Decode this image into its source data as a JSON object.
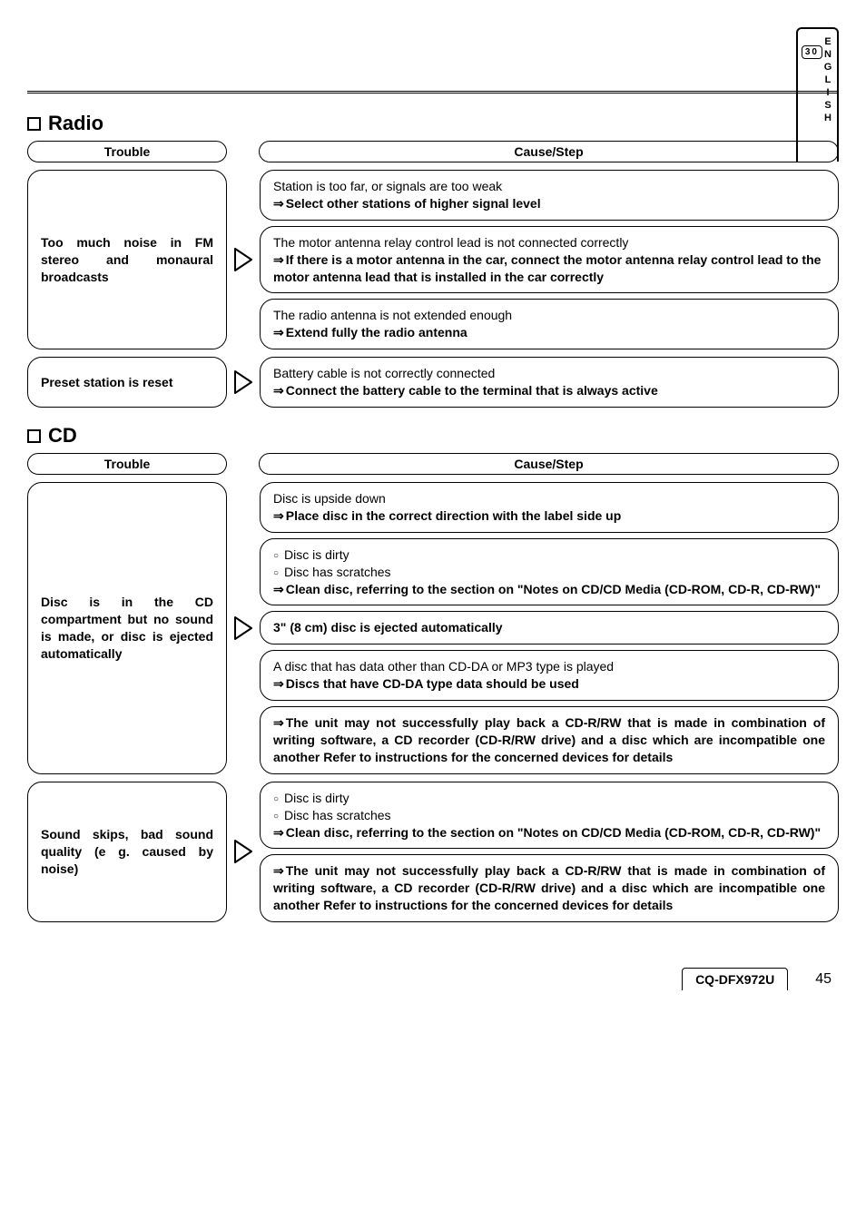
{
  "sideTab": {
    "lang": "ENGLISH",
    "page": "30"
  },
  "sections": [
    {
      "title": "Radio",
      "headers": {
        "trouble": "Trouble",
        "cause": "Cause/Step"
      },
      "rows": [
        {
          "trouble": "Too much noise in FM stereo and monaural broadcasts",
          "causes": [
            {
              "lines": [
                {
                  "type": "plain",
                  "text": "Station is too far, or signals are too weak"
                },
                {
                  "type": "step",
                  "text": "Select other stations of higher signal level"
                }
              ]
            },
            {
              "lines": [
                {
                  "type": "plain",
                  "text": "The motor antenna relay control lead is not connected correctly"
                },
                {
                  "type": "step",
                  "text": "If there is a motor antenna in the car, connect the motor antenna relay control lead to the motor antenna lead that is installed in the car correctly"
                }
              ]
            },
            {
              "lines": [
                {
                  "type": "plain",
                  "text": "The radio antenna is not extended enough"
                },
                {
                  "type": "step",
                  "text": "Extend fully the radio antenna"
                }
              ]
            }
          ]
        },
        {
          "trouble": "Preset station is reset",
          "causes": [
            {
              "lines": [
                {
                  "type": "plain",
                  "text": "Battery cable is not correctly connected"
                },
                {
                  "type": "step",
                  "text": "Connect the battery cable to the terminal that is always active"
                }
              ]
            }
          ]
        }
      ]
    },
    {
      "title": "CD",
      "headers": {
        "trouble": "Trouble",
        "cause": "Cause/Step"
      },
      "rows": [
        {
          "trouble": "Disc is in the CD compartment but no sound is made, or disc is ejected automatically",
          "causes": [
            {
              "lines": [
                {
                  "type": "plain",
                  "text": "Disc is upside down"
                },
                {
                  "type": "step",
                  "text": "Place disc in the correct direction with the label side up"
                }
              ]
            },
            {
              "lines": [
                {
                  "type": "bullet",
                  "text": "Disc is dirty"
                },
                {
                  "type": "bullet",
                  "text": "Disc has scratches"
                },
                {
                  "type": "step",
                  "justify": true,
                  "text": "Clean disc, referring to the section on \"Notes on CD/CD Media (CD-ROM, CD-R, CD-RW)\""
                }
              ]
            },
            {
              "lines": [
                {
                  "type": "stepOnly",
                  "text": "3\" (8 cm) disc is ejected automatically"
                }
              ]
            },
            {
              "lines": [
                {
                  "type": "plain",
                  "text": "A disc that has data other than CD-DA or MP3 type is played"
                },
                {
                  "type": "step",
                  "text": "Discs that have CD-DA type data should be used"
                }
              ]
            },
            {
              "lines": [
                {
                  "type": "step",
                  "justify": true,
                  "text": "The unit may not successfully play back a CD-R/RW that is made in combination of writing software, a CD recorder (CD-R/RW drive) and a disc which are incompatible one another  Refer to instructions for the concerned devices for details"
                }
              ]
            }
          ]
        },
        {
          "trouble": "Sound skips, bad sound quality (e g. caused by noise)",
          "causes": [
            {
              "lines": [
                {
                  "type": "bullet",
                  "text": "Disc is dirty"
                },
                {
                  "type": "bullet",
                  "text": "Disc has scratches"
                },
                {
                  "type": "step",
                  "justify": true,
                  "text": "Clean disc, referring to the section on \"Notes on CD/CD Media (CD-ROM, CD-R, CD-RW)\""
                }
              ]
            },
            {
              "lines": [
                {
                  "type": "step",
                  "justify": true,
                  "text": "The unit may not successfully play back a CD-R/RW that is made in combination of writing software, a CD recorder (CD-R/RW drive) and a disc which are incompatible one another  Refer to instructions for the concerned devices for details"
                }
              ]
            }
          ]
        }
      ]
    }
  ],
  "footer": {
    "model": "CQ-DFX972U",
    "page": "45"
  }
}
